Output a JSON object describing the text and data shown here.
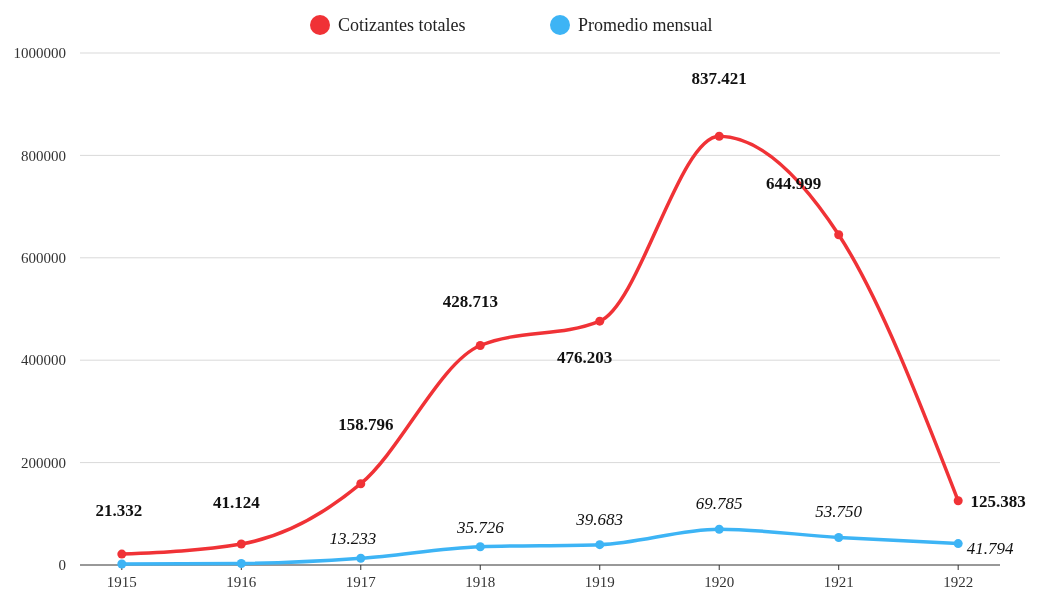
{
  "chart_data": {
    "type": "line",
    "categories": [
      "1915",
      "1916",
      "1917",
      "1918",
      "1919",
      "1920",
      "1921",
      "1922"
    ],
    "series": [
      {
        "name": "Cotizantes totales",
        "color": "#f03236",
        "values": [
          21332,
          41124,
          158796,
          428713,
          476203,
          837421,
          644999,
          125383
        ],
        "value_labels": [
          "21.332",
          "41.124",
          "158.796",
          "428.713",
          "476.203",
          "837.421",
          "644.999",
          "125.383"
        ]
      },
      {
        "name": "Promedio mensual",
        "color": "#3db4f5",
        "values": [
          2000,
          3000,
          13233,
          35726,
          39683,
          69785,
          53750,
          41794
        ],
        "value_labels": [
          null,
          null,
          "13.233",
          "35.726",
          "39.683",
          "69.785",
          "53.750",
          "41.794"
        ]
      }
    ],
    "ylim": [
      0,
      1000000
    ],
    "yticks": [
      0,
      200000,
      400000,
      600000,
      800000,
      1000000
    ],
    "grid": "y",
    "legend": "top",
    "marker": "circle",
    "line_style": "solid"
  }
}
